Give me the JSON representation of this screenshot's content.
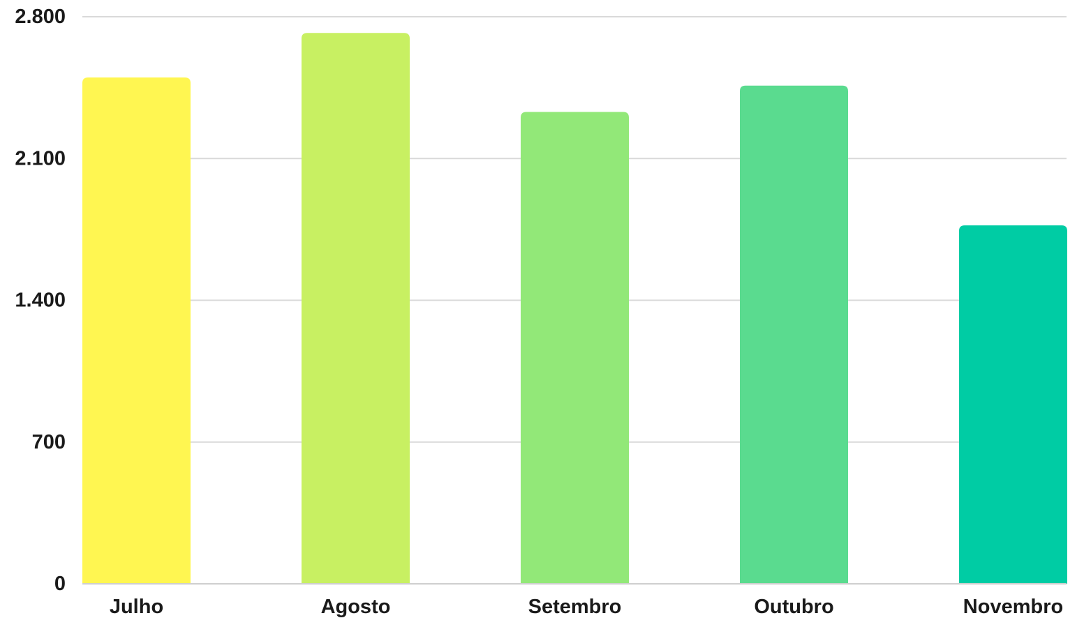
{
  "chart_data": {
    "type": "bar",
    "title": "",
    "xlabel": "",
    "ylabel": "",
    "categories": [
      "Julho",
      "Agosto",
      "Setembro",
      "Outubro",
      "Novembro"
    ],
    "values": [
      2500,
      2720,
      2330,
      2460,
      1770
    ],
    "colors": [
      "#fff651",
      "#c8f062",
      "#92e878",
      "#5adb8f",
      "#00cca4"
    ],
    "ylim": [
      0,
      2800
    ],
    "yticks": [
      0,
      700,
      1400,
      2100,
      2800
    ],
    "ytick_labels": [
      "0",
      "700",
      "1.400",
      "2.100",
      "2.800"
    ],
    "grid": true,
    "legend": "none"
  }
}
